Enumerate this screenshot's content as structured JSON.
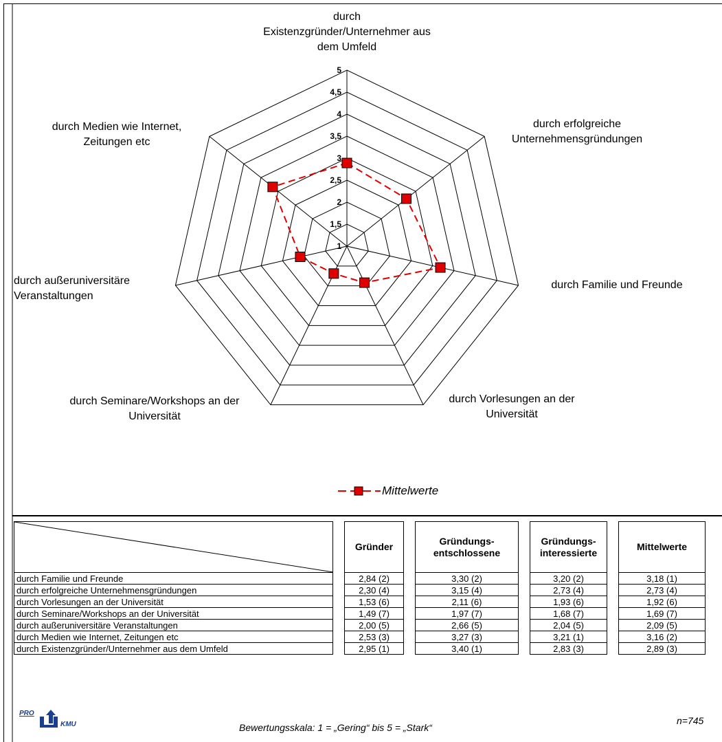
{
  "chart_data": {
    "type": "radar",
    "axes": [
      "durch\nExistenzgründer/Unternehmer aus\ndem Umfeld",
      "durch erfolgreiche\nUnternehmensgründungen",
      "durch Familie und Freunde",
      "durch Vorlesungen an der\nUniversität",
      "durch Seminare/Workshops an der\nUniversität",
      "durch außeruniversitäre\nVeranstaltungen",
      "durch Medien wie Internet,\nZeitungen etc"
    ],
    "ticks": [
      "1",
      "1,5",
      "2",
      "2,5",
      "3",
      "3,5",
      "4",
      "4,5",
      "5"
    ],
    "tick_values": [
      1,
      1.5,
      2,
      2.5,
      3,
      3.5,
      4,
      4.5,
      5
    ],
    "range": [
      1,
      5
    ],
    "series": [
      {
        "name": "Mittelwerte",
        "color": "#e00000",
        "values": [
          2.89,
          2.73,
          3.18,
          1.92,
          1.69,
          2.09,
          3.16
        ]
      }
    ],
    "legend_position": "bottom"
  },
  "table": {
    "headers": [
      "Gründer",
      "Gründungs-\nentschlossene",
      "Gründungs-\ninteressierte",
      "Mittelwerte"
    ],
    "rows": [
      {
        "label": "durch Familie und Freunde",
        "values": [
          "2,84 (2)",
          "3,30 (2)",
          "3,20 (2)",
          "3,18 (1)"
        ]
      },
      {
        "label": "durch erfolgreiche Unternehmensgründungen",
        "values": [
          "2,30 (4)",
          "3,15 (4)",
          "2,73 (4)",
          "2,73 (4)"
        ]
      },
      {
        "label": "durch Vorlesungen an der Universität",
        "values": [
          "1,53 (6)",
          "2,11 (6)",
          "1,93 (6)",
          "1,92 (6)"
        ]
      },
      {
        "label": "durch Seminare/Workshops an der Universität",
        "values": [
          "1,49 (7)",
          "1,97 (7)",
          "1,68 (7)",
          "1,69 (7)"
        ]
      },
      {
        "label": "durch außeruniversitäre Veranstaltungen",
        "values": [
          "2,00 (5)",
          "2,66 (5)",
          "2,04 (5)",
          "2,09 (5)"
        ]
      },
      {
        "label": "durch Medien wie Internet, Zeitungen etc",
        "values": [
          "2,53 (3)",
          "3,27 (3)",
          "3,21 (1)",
          "3,16 (2)"
        ]
      },
      {
        "label": "durch Existenzgründer/Unternehmer aus dem Umfeld",
        "values": [
          "2,95 (1)",
          "3,40 (1)",
          "2,83 (3)",
          "2,89 (3)"
        ]
      }
    ]
  },
  "footer": {
    "scale_note": "Bewertungsskala: 1 = „Gering“ bis 5 = „Stark“",
    "n": "n=745",
    "logo_top": "PRO",
    "logo_bottom": "KMU",
    "logo_colors": {
      "blue": "#1b3f8f"
    }
  }
}
